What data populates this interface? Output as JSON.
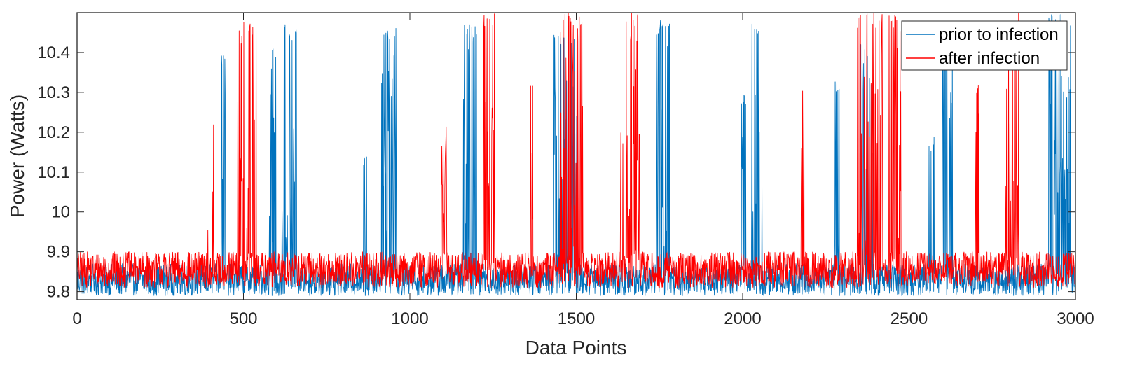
{
  "chart_data": {
    "type": "line",
    "title": "",
    "xlabel": "Data Points",
    "ylabel": "Power (Watts)",
    "xlim": [
      0,
      3000
    ],
    "ylim": [
      9.78,
      10.5
    ],
    "xticks": [
      0,
      500,
      1000,
      1500,
      2000,
      2500,
      3000
    ],
    "yticks": [
      9.8,
      9.9,
      10,
      10.1,
      10.2,
      10.3,
      10.4
    ],
    "xtick_labels": [
      "0",
      "500",
      "1000",
      "1500",
      "2000",
      "2500",
      "3000"
    ],
    "ytick_labels": [
      "9.8",
      "9.9",
      "10",
      "10.1",
      "10.2",
      "10.3",
      "10.4"
    ],
    "grid": false,
    "legend_position": "top-right",
    "series": [
      {
        "name": "prior to infection",
        "color": "#0072BD",
        "baseline": [
          9.79,
          9.87
        ],
        "bursts": [
          [
            430,
            445,
            10.4
          ],
          [
            578,
            600,
            10.41
          ],
          [
            615,
            660,
            10.47
          ],
          [
            860,
            870,
            10.15
          ],
          [
            915,
            960,
            10.47
          ],
          [
            1160,
            1200,
            10.47
          ],
          [
            1430,
            1510,
            10.45
          ],
          [
            1740,
            1780,
            10.48
          ],
          [
            1995,
            2010,
            10.3
          ],
          [
            2025,
            2060,
            10.48
          ],
          [
            2275,
            2290,
            10.34
          ],
          [
            2355,
            2390,
            10.42
          ],
          [
            2560,
            2580,
            10.19
          ],
          [
            2600,
            2630,
            10.44
          ],
          [
            2920,
            2985,
            10.5
          ]
        ]
      },
      {
        "name": "after infection",
        "color": "#FF0000",
        "baseline": [
          9.81,
          9.9
        ],
        "bursts": [
          [
            390,
            410,
            10.25
          ],
          [
            480,
            540,
            10.48
          ],
          [
            1095,
            1110,
            10.24
          ],
          [
            1220,
            1255,
            10.5
          ],
          [
            1360,
            1370,
            10.32
          ],
          [
            1450,
            1520,
            10.5
          ],
          [
            1630,
            1640,
            10.2
          ],
          [
            1650,
            1690,
            10.5
          ],
          [
            2175,
            2185,
            10.33
          ],
          [
            2345,
            2420,
            10.5
          ],
          [
            2440,
            2475,
            10.5
          ],
          [
            2700,
            2710,
            10.33
          ],
          [
            2790,
            2830,
            10.5
          ]
        ]
      }
    ]
  }
}
